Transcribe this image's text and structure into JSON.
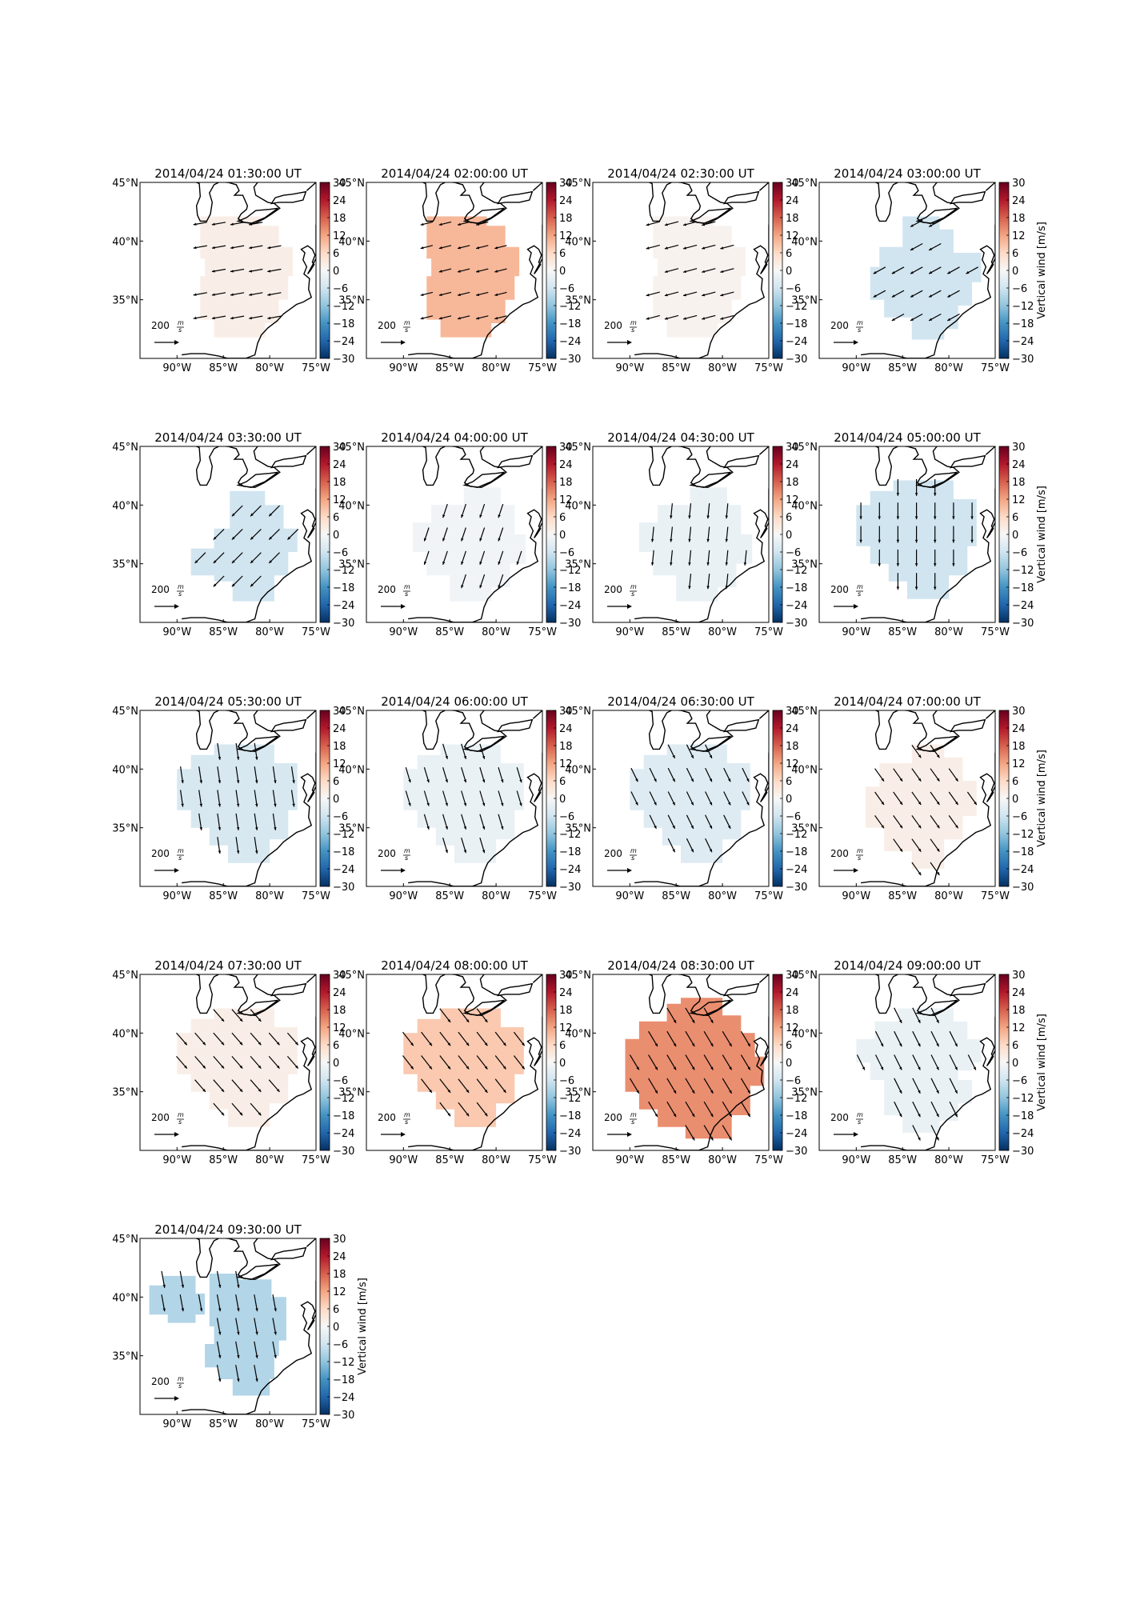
{
  "colorbar": {
    "label": "Vertical wind [m/s]",
    "ticks": [
      "30",
      "24",
      "18",
      "12",
      "6",
      "0",
      "−6",
      "−12",
      "−18",
      "−24",
      "−30"
    ],
    "range": [
      -30,
      30
    ],
    "colormap": [
      "#053061",
      "#2166ac",
      "#4393c3",
      "#92c5de",
      "#d1e5f0",
      "#f7f7f7",
      "#fddbc7",
      "#f4a582",
      "#d6604d",
      "#b2182b",
      "#67001f"
    ]
  },
  "axes": {
    "xticks": [
      "90°W",
      "85°W",
      "80°W",
      "75°W"
    ],
    "yticks": [
      "45°N",
      "40°N",
      "35°N"
    ],
    "xlim_deg": [
      -94,
      -75
    ],
    "ylim_deg": [
      30,
      45
    ]
  },
  "reference_vector": {
    "label_num": "200",
    "label_num_ms": "m",
    "label_den": "s"
  },
  "chart_data": [
    {
      "type": "heatmap",
      "title": "2014/04/24 01:30:00 UT",
      "vertical_wind_ms": 2,
      "region": "A",
      "wind": [
        -45,
        8
      ]
    },
    {
      "type": "heatmap",
      "title": "2014/04/24 02:00:00 UT",
      "vertical_wind_ms": 10,
      "region": "A",
      "wind": [
        -40,
        10
      ]
    },
    {
      "type": "heatmap",
      "title": "2014/04/24 02:30:00 UT",
      "vertical_wind_ms": 1,
      "region": "A",
      "wind": [
        -45,
        12
      ]
    },
    {
      "type": "heatmap",
      "title": "2014/04/24 03:00:00 UT",
      "vertical_wind_ms": -6,
      "region": "B",
      "wind": [
        -40,
        22
      ]
    },
    {
      "type": "heatmap",
      "title": "2014/04/24 03:30:00 UT",
      "vertical_wind_ms": -6,
      "region": "C",
      "wind": [
        -35,
        35
      ]
    },
    {
      "type": "heatmap",
      "title": "2014/04/24 04:00:00 UT",
      "vertical_wind_ms": -1,
      "region": "D",
      "wind": [
        -15,
        45
      ]
    },
    {
      "type": "heatmap",
      "title": "2014/04/24 04:30:00 UT",
      "vertical_wind_ms": -2,
      "region": "D",
      "wind": [
        -5,
        50
      ]
    },
    {
      "type": "heatmap",
      "title": "2014/04/24 05:00:00 UT",
      "vertical_wind_ms": -6,
      "region": "E",
      "wind": [
        0,
        55
      ]
    },
    {
      "type": "heatmap",
      "title": "2014/04/24 05:30:00 UT",
      "vertical_wind_ms": -5,
      "region": "E",
      "wind": [
        8,
        55
      ]
    },
    {
      "type": "heatmap",
      "title": "2014/04/24 06:00:00 UT",
      "vertical_wind_ms": -2,
      "region": "E",
      "wind": [
        15,
        50
      ]
    },
    {
      "type": "heatmap",
      "title": "2014/04/24 06:30:00 UT",
      "vertical_wind_ms": -4,
      "region": "E",
      "wind": [
        22,
        45
      ]
    },
    {
      "type": "heatmap",
      "title": "2014/04/24 07:00:00 UT",
      "vertical_wind_ms": 2,
      "region": "F",
      "wind": [
        30,
        42
      ]
    },
    {
      "type": "heatmap",
      "title": "2014/04/24 07:30:00 UT",
      "vertical_wind_ms": 2,
      "region": "E",
      "wind": [
        35,
        40
      ]
    },
    {
      "type": "heatmap",
      "title": "2014/04/24 08:00:00 UT",
      "vertical_wind_ms": 8,
      "region": "E",
      "wind": [
        35,
        45
      ]
    },
    {
      "type": "heatmap",
      "title": "2014/04/24 08:30:00 UT",
      "vertical_wind_ms": 14,
      "region": "G",
      "wind": [
        30,
        50
      ]
    },
    {
      "type": "heatmap",
      "title": "2014/04/24 09:00:00 UT",
      "vertical_wind_ms": -2,
      "region": "H",
      "wind": [
        25,
        50
      ]
    },
    {
      "type": "heatmap",
      "title": "2014/04/24 09:30:00 UT",
      "vertical_wind_ms": -9,
      "region": "I",
      "wind": [
        10,
        55
      ]
    }
  ]
}
